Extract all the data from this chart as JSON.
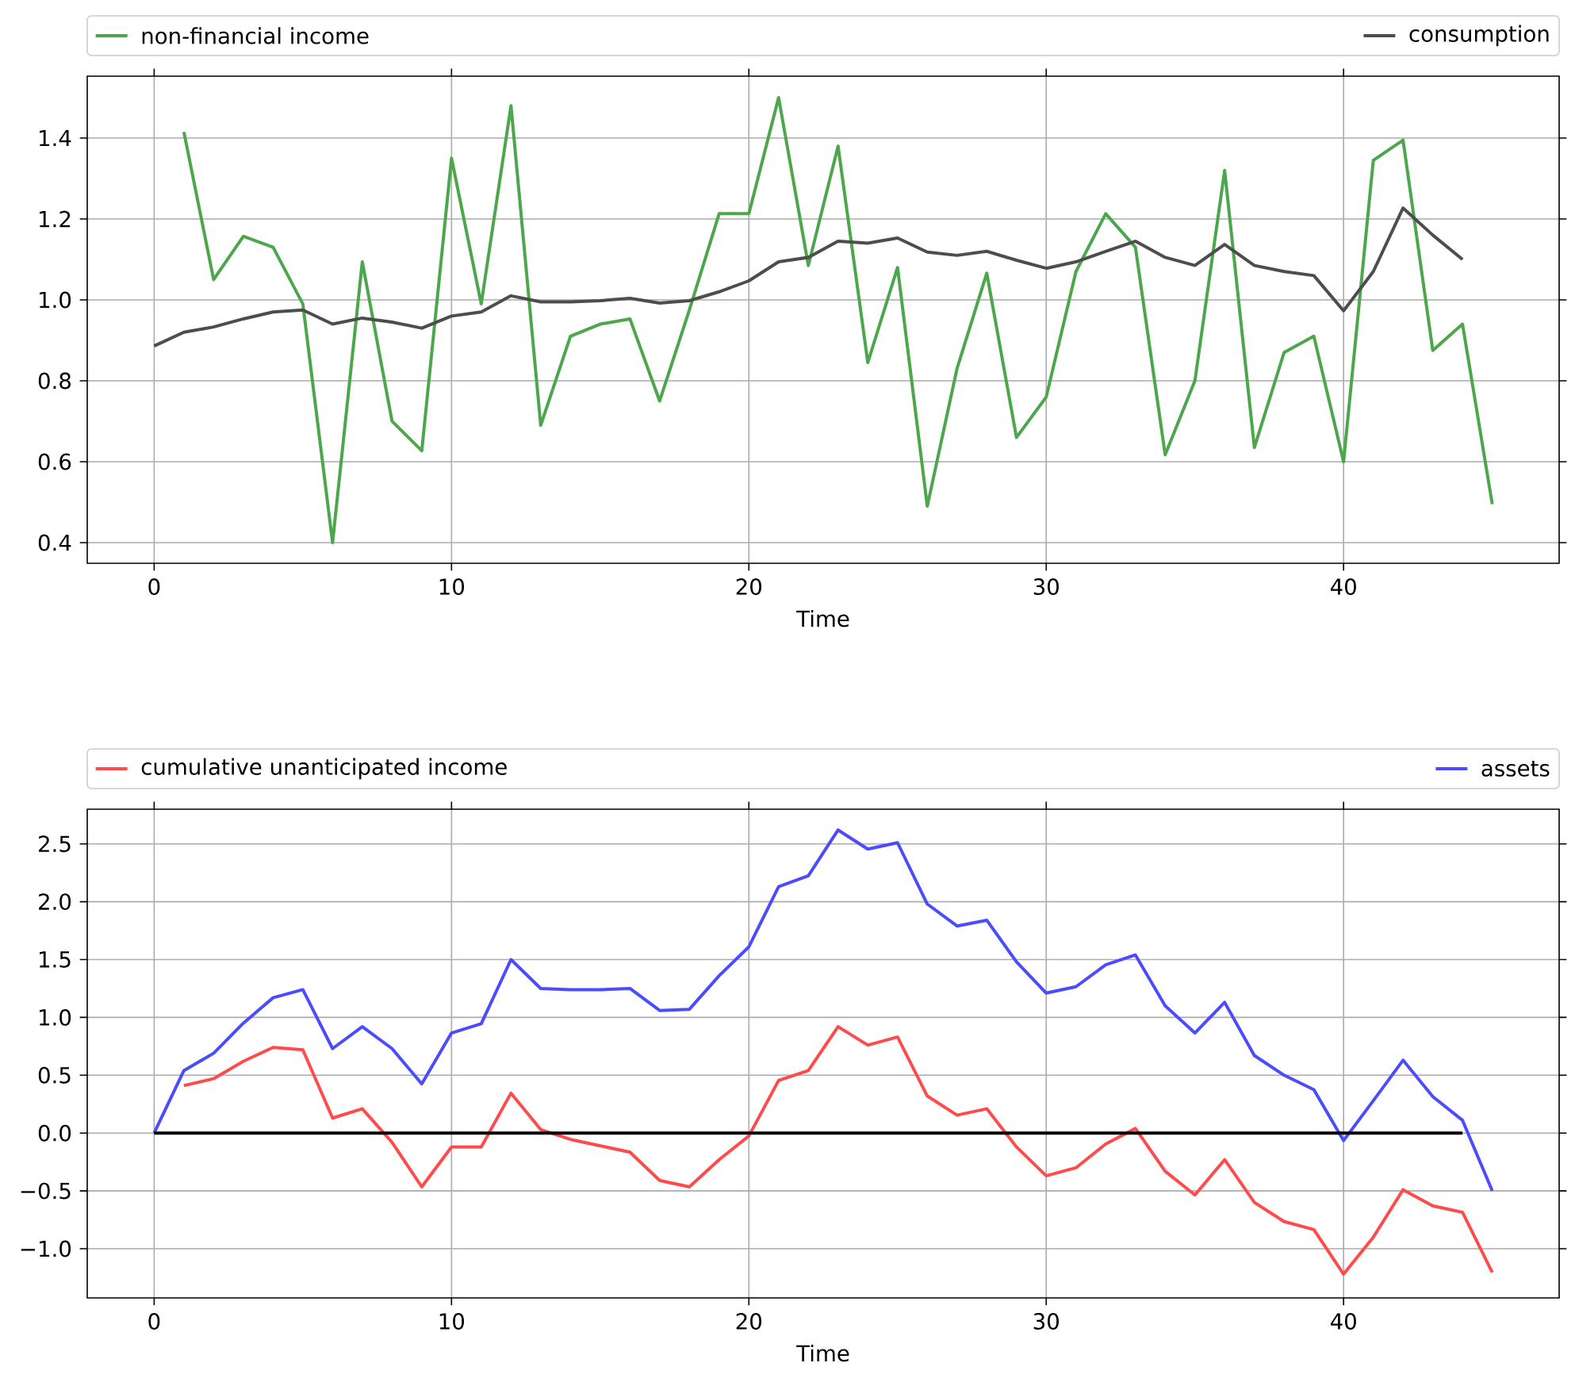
{
  "chart_data": [
    {
      "type": "line",
      "xlabel": "Time",
      "xlim": [
        -2.25,
        47.25
      ],
      "ylim": [
        0.349,
        1.553
      ],
      "xticks": [
        0,
        10,
        20,
        30,
        40
      ],
      "yticks": [
        0.4,
        0.6,
        0.8,
        {
          "value": 1.0,
          "label": "1.0"
        },
        1.2,
        1.4
      ],
      "grid": true,
      "legend": "top",
      "series": [
        {
          "name": "non-financial income",
          "color": "#4ca64c",
          "x": [
            1,
            2,
            3,
            4,
            5,
            6,
            7,
            8,
            9,
            10,
            11,
            12,
            13,
            14,
            15,
            16,
            17,
            18,
            19,
            20,
            21,
            22,
            23,
            24,
            25,
            26,
            27,
            28,
            29,
            30,
            31,
            32,
            33,
            34,
            35,
            36,
            37,
            38,
            39,
            40,
            41,
            42,
            43,
            44,
            45
          ],
          "values": [
            1.415,
            1.05,
            1.157,
            1.13,
            0.99,
            0.4,
            1.094,
            0.7,
            0.627,
            1.35,
            0.99,
            1.48,
            0.69,
            0.91,
            0.94,
            0.953,
            0.75,
            0.975,
            1.213,
            1.213,
            1.5,
            1.085,
            1.38,
            0.845,
            1.08,
            0.49,
            0.83,
            1.066,
            0.66,
            0.76,
            1.07,
            1.213,
            1.13,
            0.617,
            0.8,
            1.32,
            0.635,
            0.87,
            0.91,
            0.6,
            1.345,
            1.395,
            0.875,
            0.94,
            0.495
          ]
        },
        {
          "name": "consumption",
          "color": "#4d4d4d",
          "x": [
            0,
            1,
            2,
            3,
            4,
            5,
            6,
            7,
            8,
            9,
            10,
            11,
            12,
            13,
            14,
            15,
            16,
            17,
            18,
            19,
            20,
            21,
            22,
            23,
            24,
            25,
            26,
            27,
            28,
            29,
            30,
            31,
            32,
            33,
            34,
            35,
            36,
            37,
            38,
            39,
            40,
            41,
            42,
            43,
            44
          ],
          "values": [
            0.886,
            0.92,
            0.933,
            0.953,
            0.97,
            0.975,
            0.94,
            0.955,
            0.945,
            0.93,
            0.96,
            0.97,
            1.01,
            0.995,
            0.995,
            0.998,
            1.004,
            0.992,
            0.998,
            1.02,
            1.047,
            1.094,
            1.105,
            1.145,
            1.14,
            1.153,
            1.118,
            1.11,
            1.12,
            1.098,
            1.078,
            1.094,
            1.12,
            1.145,
            1.105,
            1.085,
            1.137,
            1.085,
            1.07,
            1.06,
            0.973,
            1.07,
            1.227,
            1.16,
            1.1
          ]
        }
      ]
    },
    {
      "type": "line",
      "xlabel": "Time",
      "xlim": [
        -2.25,
        47.25
      ],
      "ylim": [
        -1.425,
        2.8
      ],
      "xticks": [
        0,
        10,
        20,
        30,
        40
      ],
      "yticks": [
        {
          "value": -1.0,
          "label": "−1.0"
        },
        {
          "value": -0.5,
          "label": "−0.5"
        },
        {
          "value": 0.0,
          "label": "0.0"
        },
        0.5,
        {
          "value": 1.0,
          "label": "1.0"
        },
        1.5,
        {
          "value": 2.0,
          "label": "2.0"
        },
        2.5
      ],
      "grid": true,
      "legend": "top",
      "series": [
        {
          "name": "cumulative unanticipated income",
          "color": "#ff4b4b",
          "x": [
            1,
            2,
            3,
            4,
            5,
            6,
            7,
            8,
            9,
            10,
            11,
            12,
            13,
            14,
            15,
            16,
            17,
            18,
            19,
            20,
            21,
            22,
            23,
            24,
            25,
            26,
            27,
            28,
            29,
            30,
            31,
            32,
            33,
            34,
            35,
            36,
            37,
            38,
            39,
            40,
            41,
            42,
            43,
            44,
            45
          ],
          "values": [
            0.41,
            0.47,
            0.62,
            0.74,
            0.72,
            0.13,
            0.21,
            -0.08,
            -0.465,
            -0.12,
            -0.12,
            0.345,
            0.03,
            -0.055,
            -0.11,
            -0.165,
            -0.41,
            -0.465,
            -0.23,
            -0.025,
            0.455,
            0.54,
            0.92,
            0.76,
            0.83,
            0.32,
            0.155,
            0.21,
            -0.12,
            -0.37,
            -0.3,
            -0.095,
            0.04,
            -0.33,
            -0.535,
            -0.23,
            -0.6,
            -0.765,
            -0.835,
            -1.22,
            -0.9,
            -0.49,
            -0.63,
            -0.685,
            -1.205
          ]
        },
        {
          "name": "assets",
          "color": "#4b4bff",
          "x": [
            0,
            1,
            2,
            3,
            4,
            5,
            6,
            7,
            8,
            9,
            10,
            11,
            12,
            13,
            14,
            15,
            16,
            17,
            18,
            19,
            20,
            21,
            22,
            23,
            24,
            25,
            26,
            27,
            28,
            29,
            30,
            31,
            32,
            33,
            34,
            35,
            36,
            37,
            38,
            39,
            40,
            41,
            42,
            43,
            44,
            45
          ],
          "values": [
            0,
            0.54,
            0.69,
            0.95,
            1.17,
            1.24,
            0.73,
            0.92,
            0.73,
            0.425,
            0.865,
            0.945,
            1.5,
            1.25,
            1.24,
            1.24,
            1.25,
            1.06,
            1.07,
            1.36,
            1.61,
            2.13,
            2.225,
            2.62,
            2.455,
            2.51,
            1.98,
            1.79,
            1.84,
            1.48,
            1.21,
            1.265,
            1.455,
            1.54,
            1.1,
            0.865,
            1.13,
            0.67,
            0.5,
            0.375,
            -0.065,
            0.28,
            0.63,
            0.315,
            0.11,
            -0.5
          ]
        },
        {
          "color": "#000000",
          "x": [
            0,
            1,
            2,
            3,
            4,
            5,
            6,
            7,
            8,
            9,
            10,
            11,
            12,
            13,
            14,
            15,
            16,
            17,
            18,
            19,
            20,
            21,
            22,
            23,
            24,
            25,
            26,
            27,
            28,
            29,
            30,
            31,
            32,
            33,
            34,
            35,
            36,
            37,
            38,
            39,
            40,
            41,
            42,
            43,
            44
          ],
          "values": [
            0,
            0,
            0,
            0,
            0,
            0,
            0,
            0,
            0,
            0,
            0,
            0,
            0,
            0,
            0,
            0,
            0,
            0,
            0,
            0,
            0,
            0,
            0,
            0,
            0,
            0,
            0,
            0,
            0,
            0,
            0,
            0,
            0,
            0,
            0,
            0,
            0,
            0,
            0,
            0,
            0,
            0,
            0,
            0,
            0
          ]
        }
      ]
    }
  ]
}
